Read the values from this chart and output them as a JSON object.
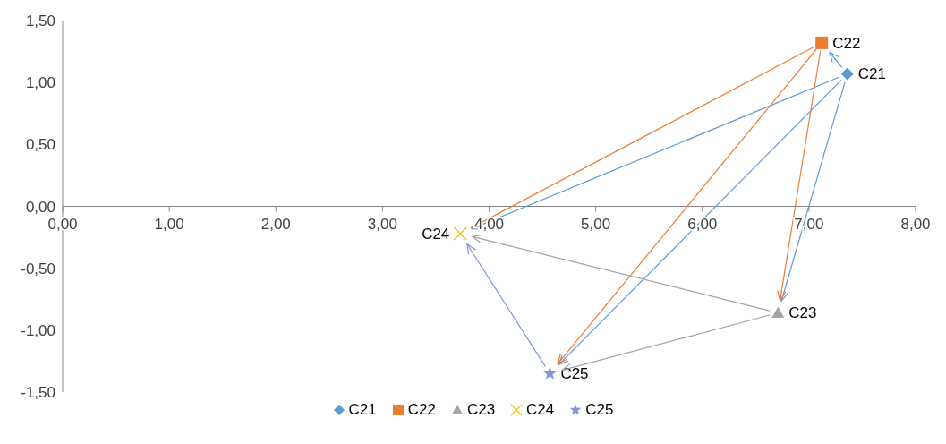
{
  "chart_data": {
    "type": "scatter",
    "xlim": [
      0,
      8
    ],
    "xticks": [
      {
        "value": 0,
        "label": "0,00"
      },
      {
        "value": 1,
        "label": "1,00"
      },
      {
        "value": 2,
        "label": "2,00"
      },
      {
        "value": 3,
        "label": "3,00"
      },
      {
        "value": 4,
        "label": "4,00"
      },
      {
        "value": 5,
        "label": "5,00"
      },
      {
        "value": 6,
        "label": "6,00"
      },
      {
        "value": 7,
        "label": "7,00"
      },
      {
        "value": 8,
        "label": "8,00"
      }
    ],
    "ylim": [
      -1.5,
      1.5
    ],
    "yticks": [
      {
        "value": -1.5,
        "label": "-1,50"
      },
      {
        "value": -1,
        "label": "-1,00"
      },
      {
        "value": -0.5,
        "label": "-0,50"
      },
      {
        "value": 0,
        "label": "0,00"
      },
      {
        "value": 0.5,
        "label": "0,50"
      },
      {
        "value": 1,
        "label": "1,00"
      },
      {
        "value": 1.5,
        "label": "1,50"
      }
    ],
    "grid": false,
    "legend": "bottom",
    "series": [
      {
        "name": "C21",
        "color": "#5b9bd5",
        "marker": "diamond",
        "x": [
          7.36
        ],
        "values": [
          1.07
        ]
      },
      {
        "name": "C22",
        "color": "#ed7d31",
        "marker": "square",
        "x": [
          7.12
        ],
        "values": [
          1.32
        ]
      },
      {
        "name": "C23",
        "color": "#a5a5a5",
        "marker": "triangle",
        "x": [
          6.71
        ],
        "values": [
          -0.86
        ]
      },
      {
        "name": "C24",
        "color": "#ffc000",
        "marker": "cross",
        "x": [
          3.73
        ],
        "values": [
          -0.22
        ]
      },
      {
        "name": "C25",
        "color": "#7f96d9",
        "marker": "star",
        "x": [
          4.57
        ],
        "values": [
          -1.35
        ]
      }
    ]
  }
}
